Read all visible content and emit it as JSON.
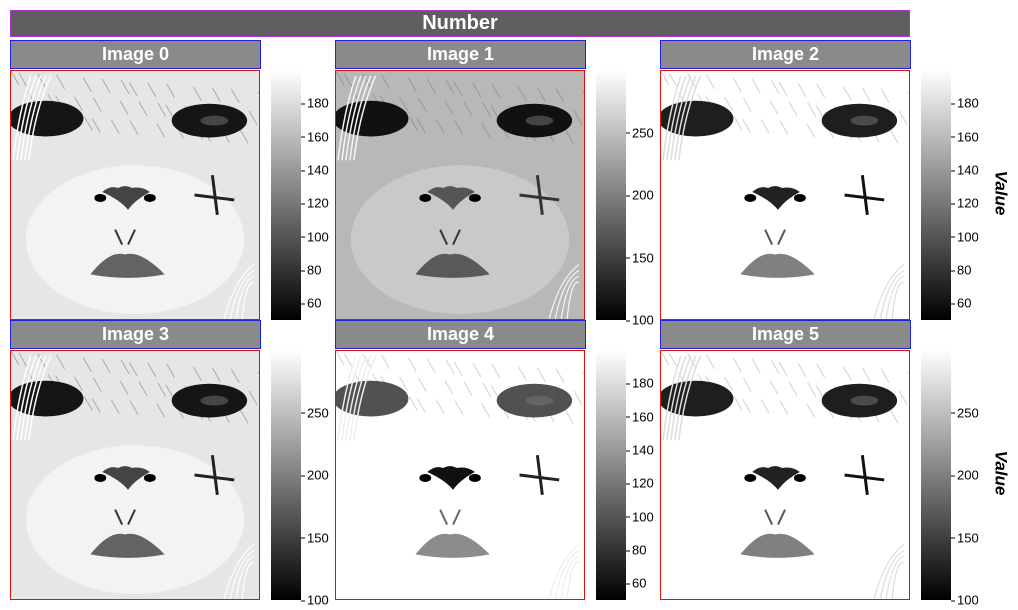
{
  "figure": {
    "title": "Number"
  },
  "colorbar_label": "Value",
  "panels": [
    {
      "title": "Image 0",
      "ticks": [
        "180",
        "160",
        "140",
        "120",
        "100",
        "80",
        "60"
      ],
      "range": [
        50,
        200
      ],
      "tick_values": [
        180,
        160,
        140,
        120,
        100,
        80,
        60
      ],
      "variant": "medium"
    },
    {
      "title": "Image 1",
      "ticks": [
        "250",
        "200",
        "150",
        "100"
      ],
      "range": [
        100,
        300
      ],
      "tick_values": [
        250,
        200,
        150,
        100
      ],
      "variant": "dark"
    },
    {
      "title": "Image 2",
      "ticks": [
        "180",
        "160",
        "140",
        "120",
        "100",
        "80",
        "60"
      ],
      "range": [
        50,
        200
      ],
      "tick_values": [
        180,
        160,
        140,
        120,
        100,
        80,
        60
      ],
      "variant": "light"
    },
    {
      "title": "Image 3",
      "ticks": [
        "250",
        "200",
        "150",
        "100"
      ],
      "range": [
        100,
        300
      ],
      "tick_values": [
        250,
        200,
        150,
        100
      ],
      "variant": "medium"
    },
    {
      "title": "Image 4",
      "ticks": [
        "180",
        "160",
        "140",
        "120",
        "100",
        "80",
        "60"
      ],
      "range": [
        50,
        200
      ],
      "tick_values": [
        180,
        160,
        140,
        120,
        100,
        80,
        60
      ],
      "variant": "verylight"
    },
    {
      "title": "Image 5",
      "ticks": [
        "250",
        "200",
        "150",
        "100"
      ],
      "range": [
        100,
        300
      ],
      "tick_values": [
        250,
        200,
        150,
        100
      ],
      "variant": "light"
    }
  ]
}
